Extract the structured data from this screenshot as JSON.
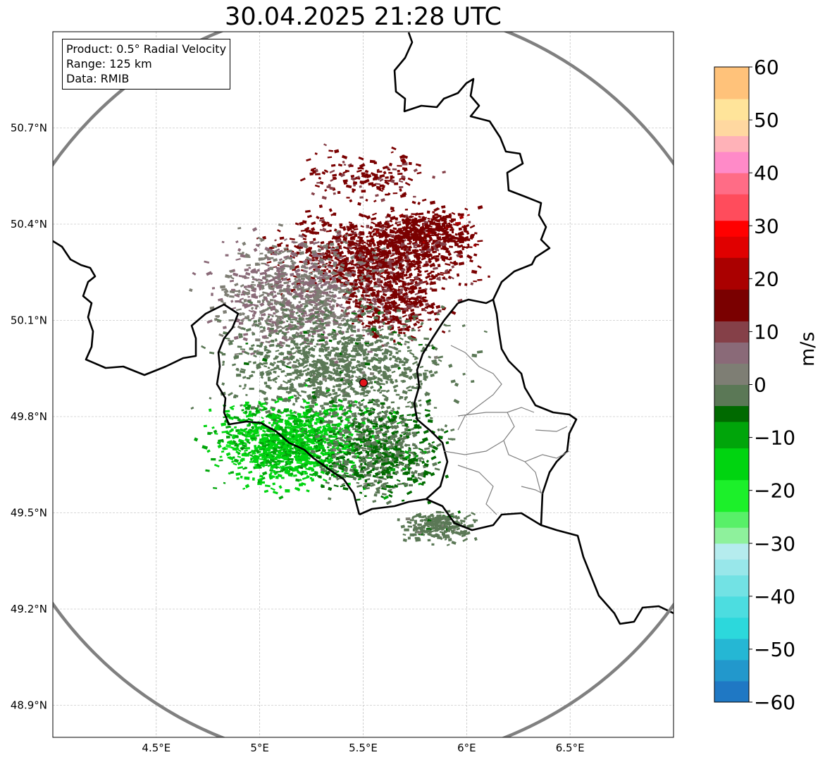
{
  "title": "30.04.2025 21:28 UTC",
  "info": {
    "product": "Product: 0.5° Radial Velocity",
    "range": "Range: 125 km",
    "source": "Data: RMIB"
  },
  "map": {
    "projection": "PlateCarree",
    "lon_range": [
      4.0,
      7.0
    ],
    "lat_range": [
      48.8,
      51.0
    ],
    "lon_ticks": [
      {
        "value": 4.5,
        "label": "4.5°E"
      },
      {
        "value": 5.0,
        "label": "5°E"
      },
      {
        "value": 5.5,
        "label": "5.5°E"
      },
      {
        "value": 6.0,
        "label": "6°E"
      },
      {
        "value": 6.5,
        "label": "6.5°E"
      }
    ],
    "lat_ticks": [
      {
        "value": 48.9,
        "label": "48.9°N"
      },
      {
        "value": 49.2,
        "label": "49.2°N"
      },
      {
        "value": 49.5,
        "label": "49.5°N"
      },
      {
        "value": 49.8,
        "label": "49.8°N"
      },
      {
        "value": 50.1,
        "label": "50.1°N"
      },
      {
        "value": 50.4,
        "label": "50.4°N"
      },
      {
        "value": 50.7,
        "label": "50.7°N"
      }
    ],
    "gridlines": true,
    "radar_site": {
      "lon": 5.505,
      "lat": 49.915,
      "color": "#e4151b"
    },
    "range_ring_color": "#808080",
    "border_color": "#000000",
    "admin_color": "#808080"
  },
  "colorbar": {
    "unit": "m/s",
    "vmin": -60,
    "vmax": 60,
    "ticks": [
      {
        "value": 60,
        "label": "60"
      },
      {
        "value": 50,
        "label": "50"
      },
      {
        "value": 40,
        "label": "40"
      },
      {
        "value": 30,
        "label": "30"
      },
      {
        "value": 20,
        "label": "20"
      },
      {
        "value": 10,
        "label": "10"
      },
      {
        "value": 0,
        "label": "0"
      },
      {
        "value": -10,
        "label": "−10"
      },
      {
        "value": -20,
        "label": "−20"
      },
      {
        "value": -30,
        "label": "−30"
      },
      {
        "value": -40,
        "label": "−40"
      },
      {
        "value": -50,
        "label": "−50"
      },
      {
        "value": -60,
        "label": "−60"
      }
    ],
    "stops": [
      {
        "v": -60,
        "color": "#1f78c4"
      },
      {
        "v": -56,
        "color": "#2298cc"
      },
      {
        "v": -52,
        "color": "#25b7d4"
      },
      {
        "v": -48,
        "color": "#2cd8dc"
      },
      {
        "v": -44,
        "color": "#4cdde0"
      },
      {
        "v": -40,
        "color": "#72e2e4"
      },
      {
        "v": -36,
        "color": "#98e7ea"
      },
      {
        "v": -33,
        "color": "#b5ecee"
      },
      {
        "v": -30,
        "color": "#8ef19c"
      },
      {
        "v": -27,
        "color": "#58f068"
      },
      {
        "v": -24,
        "color": "#1cf02a"
      },
      {
        "v": -18,
        "color": "#00d410"
      },
      {
        "v": -12,
        "color": "#00a50a"
      },
      {
        "v": -7,
        "color": "#006a00"
      },
      {
        "v": -4,
        "color": "#5b7856"
      },
      {
        "v": 0,
        "color": "#7e7e74"
      },
      {
        "v": 4,
        "color": "#8a6a78"
      },
      {
        "v": 8,
        "color": "#854048"
      },
      {
        "v": 12,
        "color": "#7a0000"
      },
      {
        "v": 18,
        "color": "#aa0000"
      },
      {
        "v": 24,
        "color": "#e00000"
      },
      {
        "v": 28,
        "color": "#ff0000"
      },
      {
        "v": 31,
        "color": "#ff4c5c"
      },
      {
        "v": 36,
        "color": "#ff6c86"
      },
      {
        "v": 40,
        "color": "#ff8ac8"
      },
      {
        "v": 44,
        "color": "#ffb2b8"
      },
      {
        "v": 47,
        "color": "#ffd8a0"
      },
      {
        "v": 50,
        "color": "#ffe49a"
      },
      {
        "v": 54,
        "color": "#ffc27a"
      },
      {
        "v": 60,
        "color": "#ff9a50"
      }
    ]
  }
}
